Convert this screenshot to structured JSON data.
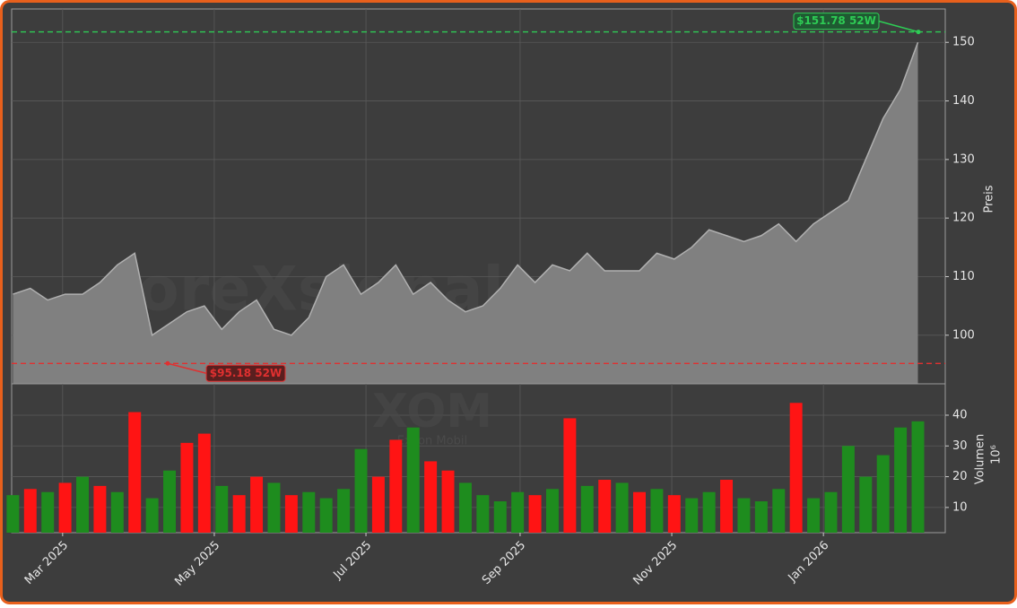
{
  "chart_data": [
    {
      "type": "area",
      "ylabel": "Preis",
      "color": "#808080",
      "line_color": "#b0b0b0",
      "watermark": "foreXsignale.trade",
      "x": [
        0,
        7,
        14,
        21,
        28,
        35,
        42,
        49,
        56,
        63,
        70,
        77,
        84,
        91,
        98,
        105,
        112,
        119,
        126,
        133,
        140,
        147,
        154,
        161,
        168,
        175,
        182,
        189,
        196,
        203,
        210,
        217,
        224,
        231,
        238,
        245,
        252,
        259,
        266,
        273,
        280,
        287,
        294,
        301,
        308,
        315,
        322,
        329,
        336,
        343,
        350,
        357,
        364
      ],
      "values": [
        107,
        108,
        106,
        107,
        107,
        109,
        112,
        114,
        100,
        102,
        104,
        105,
        101,
        104,
        106,
        101,
        100,
        103,
        110,
        112,
        107,
        109,
        112,
        107,
        109,
        106,
        104,
        105,
        108,
        112,
        109,
        112,
        111,
        114,
        111,
        111,
        111,
        114,
        113,
        115,
        118,
        117,
        116,
        117,
        119,
        116,
        119,
        121,
        123,
        130,
        137,
        142,
        150
      ],
      "xlim": [
        -0.5,
        375
      ],
      "ylim": [
        91.7,
        155.7
      ],
      "yticks": [
        100,
        110,
        120,
        130,
        140,
        150
      ],
      "grid": true,
      "annotations": [
        {
          "label": "$151.78 52W",
          "value": 151.78,
          "color": "#2ecc55"
        },
        {
          "label": "$95.18 52W",
          "value": 95.18,
          "color": "#e03030"
        }
      ]
    },
    {
      "type": "bar",
      "ylabel": "Volumen",
      "ylabel_unit": "10⁶",
      "watermark": "XOM",
      "watermark_sub": "Exxon Mobil",
      "x": [
        0,
        7,
        14,
        21,
        28,
        35,
        42,
        49,
        56,
        63,
        70,
        77,
        84,
        91,
        98,
        105,
        112,
        119,
        126,
        133,
        140,
        147,
        154,
        161,
        168,
        175,
        182,
        189,
        196,
        203,
        210,
        217,
        224,
        231,
        238,
        245,
        252,
        259,
        266,
        273,
        280,
        287,
        294,
        301,
        308,
        315,
        322,
        329,
        336,
        343,
        350,
        357,
        364
      ],
      "values": [
        14,
        16,
        15,
        18,
        20,
        17,
        15,
        41,
        13,
        22,
        31,
        34,
        17,
        14,
        20,
        18,
        14,
        15,
        13,
        16,
        29,
        20,
        32,
        36,
        25,
        22,
        18,
        14,
        12,
        15,
        14,
        16,
        39,
        17,
        19,
        18,
        15,
        16,
        14,
        13,
        15,
        19,
        13,
        12,
        16,
        44,
        13,
        15,
        30,
        20,
        27,
        36,
        38
      ],
      "colors": [
        "#1e8c1e",
        "#ff1414",
        "#1e8c1e",
        "#ff1414",
        "#1e8c1e",
        "#ff1414",
        "#1e8c1e",
        "#ff1414",
        "#1e8c1e",
        "#1e8c1e",
        "#ff1414",
        "#ff1414",
        "#1e8c1e",
        "#ff1414",
        "#ff1414",
        "#1e8c1e",
        "#ff1414",
        "#1e8c1e",
        "#1e8c1e",
        "#1e8c1e",
        "#1e8c1e",
        "#ff1414",
        "#ff1414",
        "#1e8c1e",
        "#ff1414",
        "#ff1414",
        "#1e8c1e",
        "#1e8c1e",
        "#1e8c1e",
        "#1e8c1e",
        "#ff1414",
        "#1e8c1e",
        "#ff1414",
        "#1e8c1e",
        "#ff1414",
        "#1e8c1e",
        "#ff1414",
        "#1e8c1e",
        "#ff1414",
        "#1e8c1e",
        "#1e8c1e",
        "#ff1414",
        "#1e8c1e",
        "#1e8c1e",
        "#1e8c1e",
        "#ff1414",
        "#1e8c1e",
        "#1e8c1e",
        "#1e8c1e",
        "#1e8c1e",
        "#1e8c1e",
        "#1e8c1e",
        "#1e8c1e"
      ],
      "xlim": [
        -0.5,
        375
      ],
      "ylim": [
        1.8,
        50.2
      ],
      "yticks": [
        10,
        20,
        30,
        40
      ],
      "grid": true,
      "xticks": [
        {
          "value": 20,
          "label": "Mar 2025"
        },
        {
          "value": 81,
          "label": "May 2025"
        },
        {
          "value": 142,
          "label": "Jul 2025"
        },
        {
          "value": 204,
          "label": "Sep 2025"
        },
        {
          "value": 265,
          "label": "Nov 2025"
        },
        {
          "value": 326,
          "label": "Jan 2026"
        }
      ]
    }
  ]
}
